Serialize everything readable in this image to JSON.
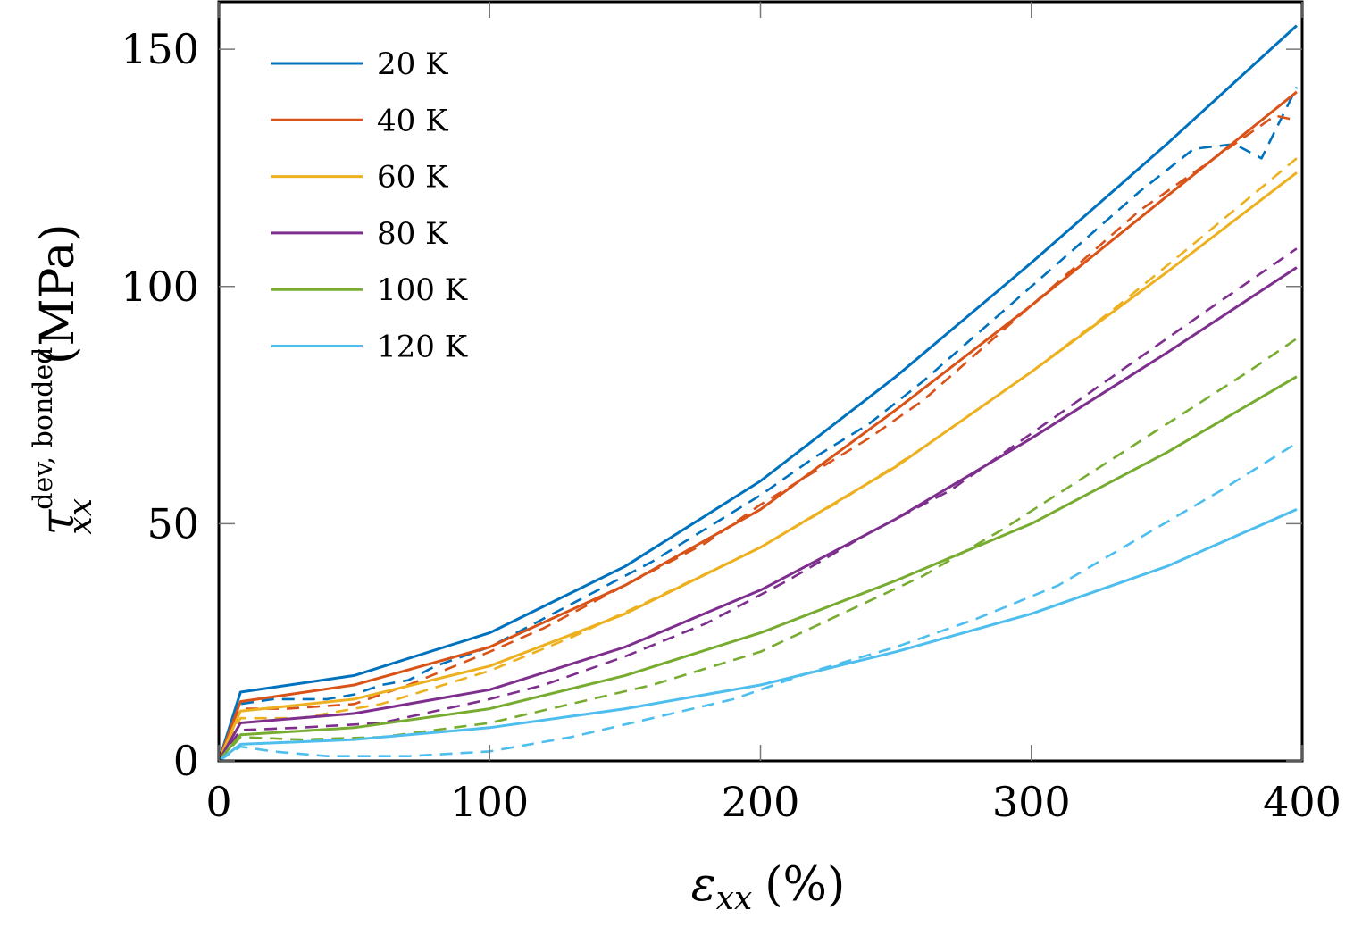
{
  "chart_data": {
    "type": "line",
    "xlabel": {
      "symbol": "ε",
      "subscript": "xx",
      "unit": "(%)"
    },
    "ylabel": {
      "symbol": "τ",
      "subscript": "xx",
      "superscript": "dev, bonded",
      "unit": "(MPa)"
    },
    "xlim": [
      0,
      400
    ],
    "ylim": [
      0,
      160
    ],
    "x_ticks": [
      0,
      100,
      200,
      300,
      400
    ],
    "y_ticks": [
      0,
      50,
      100,
      150
    ],
    "legend_position": "top-left",
    "grid": false,
    "line_styles": {
      "model": "solid",
      "reference": "dashed"
    },
    "series": [
      {
        "name": "20 K",
        "color": "#0072BD",
        "solid": [
          [
            0,
            0
          ],
          [
            8,
            14.5
          ],
          [
            50,
            18
          ],
          [
            100,
            27
          ],
          [
            150,
            41
          ],
          [
            200,
            59
          ],
          [
            250,
            81
          ],
          [
            300,
            105
          ],
          [
            350,
            130
          ],
          [
            398,
            155
          ]
        ],
        "dashed": [
          [
            0,
            0
          ],
          [
            8,
            12
          ],
          [
            20,
            13
          ],
          [
            40,
            13
          ],
          [
            50,
            14
          ],
          [
            60,
            16
          ],
          [
            70,
            17
          ],
          [
            80,
            20
          ],
          [
            90,
            22
          ],
          [
            100,
            24
          ],
          [
            120,
            30
          ],
          [
            140,
            36
          ],
          [
            160,
            42
          ],
          [
            180,
            49
          ],
          [
            200,
            56
          ],
          [
            220,
            64
          ],
          [
            240,
            71
          ],
          [
            260,
            80
          ],
          [
            280,
            90
          ],
          [
            300,
            100
          ],
          [
            320,
            110
          ],
          [
            340,
            120
          ],
          [
            360,
            129
          ],
          [
            375,
            130
          ],
          [
            385,
            127
          ],
          [
            398,
            142
          ]
        ]
      },
      {
        "name": "40 K",
        "color": "#D95319",
        "solid": [
          [
            0,
            0
          ],
          [
            8,
            12.5
          ],
          [
            50,
            16
          ],
          [
            100,
            24
          ],
          [
            150,
            37
          ],
          [
            200,
            53
          ],
          [
            250,
            74
          ],
          [
            300,
            96
          ],
          [
            350,
            119
          ],
          [
            398,
            141
          ]
        ],
        "dashed": [
          [
            0,
            0
          ],
          [
            8,
            11
          ],
          [
            25,
            11
          ],
          [
            50,
            12
          ],
          [
            70,
            16
          ],
          [
            100,
            23
          ],
          [
            120,
            28
          ],
          [
            140,
            34
          ],
          [
            160,
            40
          ],
          [
            180,
            46
          ],
          [
            200,
            54
          ],
          [
            220,
            61
          ],
          [
            240,
            68
          ],
          [
            260,
            76
          ],
          [
            280,
            86
          ],
          [
            300,
            96
          ],
          [
            320,
            106
          ],
          [
            340,
            116
          ],
          [
            360,
            124
          ],
          [
            380,
            132
          ],
          [
            390,
            136
          ],
          [
            398,
            135
          ]
        ]
      },
      {
        "name": "60 K",
        "color": "#EDB120",
        "solid": [
          [
            0,
            0
          ],
          [
            8,
            10.5
          ],
          [
            50,
            13
          ],
          [
            100,
            20
          ],
          [
            150,
            31
          ],
          [
            200,
            45
          ],
          [
            250,
            62
          ],
          [
            300,
            82
          ],
          [
            350,
            103
          ],
          [
            398,
            124
          ]
        ],
        "dashed": [
          [
            0,
            0
          ],
          [
            8,
            9
          ],
          [
            30,
            9
          ],
          [
            60,
            12
          ],
          [
            100,
            19
          ],
          [
            130,
            26
          ],
          [
            160,
            34
          ],
          [
            200,
            45
          ],
          [
            230,
            55
          ],
          [
            260,
            66
          ],
          [
            300,
            82
          ],
          [
            330,
            95
          ],
          [
            360,
            109
          ],
          [
            398,
            127
          ]
        ]
      },
      {
        "name": "80 K",
        "color": "#7E2F8E",
        "solid": [
          [
            0,
            0
          ],
          [
            8,
            8
          ],
          [
            50,
            10
          ],
          [
            100,
            15
          ],
          [
            150,
            24
          ],
          [
            200,
            36
          ],
          [
            250,
            51
          ],
          [
            300,
            68
          ],
          [
            350,
            86
          ],
          [
            398,
            104
          ]
        ],
        "dashed": [
          [
            0,
            0
          ],
          [
            8,
            6.5
          ],
          [
            30,
            7
          ],
          [
            60,
            8
          ],
          [
            100,
            13
          ],
          [
            120,
            16
          ],
          [
            150,
            22
          ],
          [
            180,
            29
          ],
          [
            210,
            38
          ],
          [
            240,
            48
          ],
          [
            270,
            57
          ],
          [
            300,
            69
          ],
          [
            330,
            81
          ],
          [
            360,
            93
          ],
          [
            398,
            108
          ]
        ]
      },
      {
        "name": "100 K",
        "color": "#77AC30",
        "solid": [
          [
            0,
            0
          ],
          [
            8,
            5.5
          ],
          [
            50,
            7
          ],
          [
            100,
            11
          ],
          [
            150,
            18
          ],
          [
            200,
            27
          ],
          [
            250,
            38
          ],
          [
            300,
            50
          ],
          [
            350,
            65
          ],
          [
            398,
            81
          ]
        ],
        "dashed": [
          [
            0,
            0
          ],
          [
            8,
            5
          ],
          [
            30,
            4.5
          ],
          [
            60,
            5
          ],
          [
            100,
            8
          ],
          [
            130,
            12
          ],
          [
            160,
            16
          ],
          [
            200,
            23
          ],
          [
            230,
            31
          ],
          [
            260,
            39
          ],
          [
            290,
            49
          ],
          [
            320,
            60
          ],
          [
            350,
            71
          ],
          [
            380,
            82
          ],
          [
            398,
            89
          ]
        ]
      },
      {
        "name": "120 K",
        "color": "#4DBEEE",
        "solid": [
          [
            0,
            0
          ],
          [
            8,
            3.5
          ],
          [
            50,
            4.5
          ],
          [
            100,
            7
          ],
          [
            150,
            11
          ],
          [
            200,
            16
          ],
          [
            250,
            23
          ],
          [
            300,
            31
          ],
          [
            350,
            41
          ],
          [
            398,
            53
          ]
        ],
        "dashed": [
          [
            0,
            0
          ],
          [
            8,
            3
          ],
          [
            20,
            2
          ],
          [
            40,
            1
          ],
          [
            70,
            1
          ],
          [
            100,
            2
          ],
          [
            130,
            5
          ],
          [
            160,
            9
          ],
          [
            190,
            13
          ],
          [
            220,
            19
          ],
          [
            250,
            24
          ],
          [
            280,
            30
          ],
          [
            310,
            37
          ],
          [
            340,
            47
          ],
          [
            370,
            57
          ],
          [
            398,
            67
          ]
        ]
      }
    ]
  }
}
